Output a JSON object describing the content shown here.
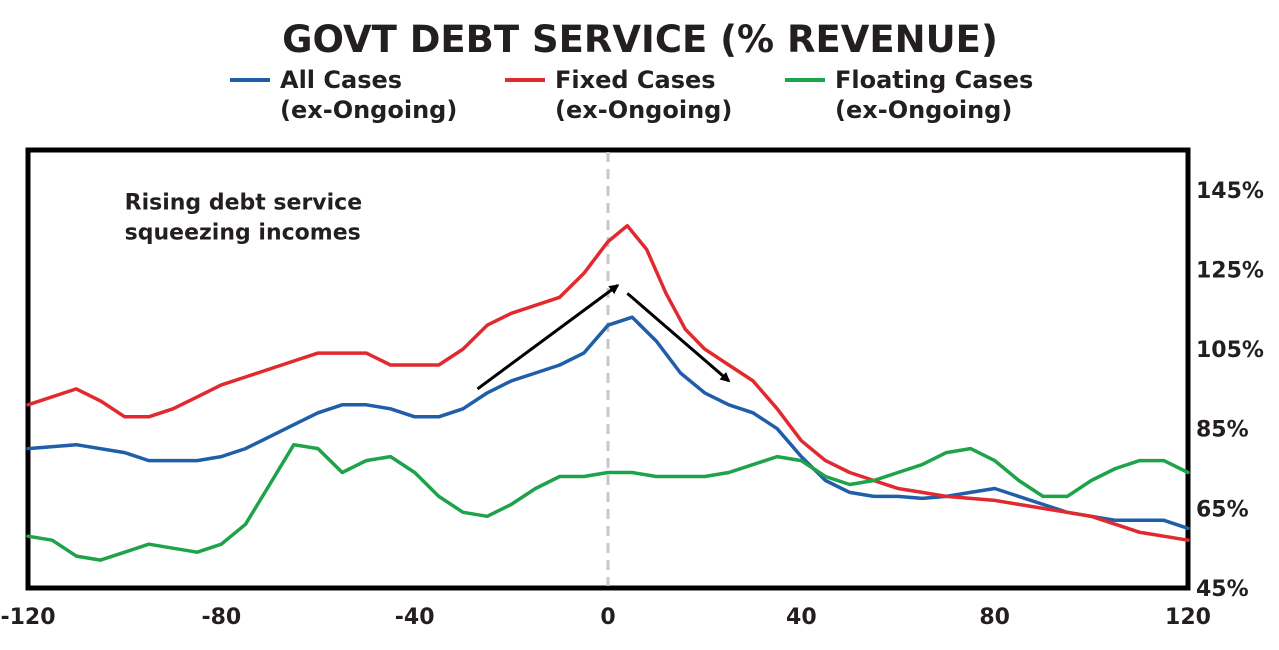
{
  "chart_data": {
    "type": "line",
    "title": "GOVT DEBT SERVICE (% REVENUE)",
    "xlabel": "",
    "ylabel": "",
    "xlim": [
      -120,
      120
    ],
    "ylim": [
      45,
      155
    ],
    "x_ticks": [
      -120,
      -80,
      -40,
      0,
      40,
      80,
      120
    ],
    "x_tick_labels": [
      "-120",
      "-80",
      "-40",
      "0",
      "40",
      "80",
      "120"
    ],
    "y_ticks": [
      45,
      65,
      85,
      105,
      125,
      145
    ],
    "y_tick_labels": [
      "45%",
      "65%",
      "85%",
      "105%",
      "125%",
      "145%"
    ],
    "y_axis_side": "right",
    "grid": false,
    "legend_position": "top",
    "vertical_reference_line_x": 0,
    "annotation": {
      "lines": [
        "Rising debt service",
        "squeezing incomes"
      ],
      "x": -100,
      "y": 140
    },
    "arrows": [
      {
        "from": [
          -27,
          95
        ],
        "to": [
          2,
          121
        ]
      },
      {
        "from": [
          4,
          119
        ],
        "to": [
          25,
          97
        ]
      }
    ],
    "series": [
      {
        "name": [
          "All Cases",
          "(ex-Ongoing)"
        ],
        "color": "#1f5ea8",
        "x": [
          -120,
          -110,
          -100,
          -95,
          -90,
          -85,
          -80,
          -75,
          -70,
          -65,
          -60,
          -55,
          -50,
          -45,
          -40,
          -35,
          -30,
          -25,
          -20,
          -15,
          -10,
          -5,
          0,
          5,
          10,
          15,
          20,
          25,
          30,
          35,
          40,
          45,
          50,
          55,
          60,
          65,
          70,
          75,
          80,
          85,
          90,
          95,
          100,
          105,
          110,
          115,
          120
        ],
        "y": [
          80,
          81,
          79,
          77,
          77,
          77,
          78,
          80,
          83,
          86,
          89,
          91,
          91,
          90,
          88,
          88,
          90,
          94,
          97,
          99,
          101,
          104,
          111,
          113,
          107,
          99,
          94,
          91,
          89,
          85,
          78,
          72,
          69,
          68,
          68,
          67.5,
          68,
          69,
          70,
          68,
          66,
          64,
          63,
          62,
          62,
          62,
          60
        ]
      },
      {
        "name": [
          "Fixed Cases",
          "(ex-Ongoing)"
        ],
        "color": "#e02a2f",
        "x": [
          -120,
          -110,
          -105,
          -100,
          -95,
          -90,
          -85,
          -80,
          -75,
          -70,
          -65,
          -60,
          -55,
          -50,
          -45,
          -40,
          -35,
          -30,
          -25,
          -20,
          -15,
          -10,
          -5,
          0,
          4,
          8,
          12,
          16,
          20,
          25,
          30,
          35,
          40,
          45,
          50,
          55,
          60,
          65,
          70,
          75,
          80,
          85,
          90,
          95,
          100,
          105,
          110,
          115,
          120
        ],
        "y": [
          91,
          95,
          92,
          88,
          88,
          90,
          93,
          96,
          98,
          100,
          102,
          104,
          104,
          104,
          101,
          101,
          101,
          105,
          111,
          114,
          116,
          118,
          124,
          132,
          136,
          130,
          119,
          110,
          105,
          101,
          97,
          90,
          82,
          77,
          74,
          72,
          70,
          69,
          68,
          67.5,
          67,
          66,
          65,
          64,
          63,
          61,
          59,
          58,
          57
        ]
      },
      {
        "name": [
          "Floating Cases",
          "(ex-Ongoing)"
        ],
        "color": "#1ea34a",
        "x": [
          -120,
          -115,
          -110,
          -105,
          -100,
          -95,
          -90,
          -85,
          -80,
          -75,
          -70,
          -65,
          -60,
          -55,
          -50,
          -45,
          -40,
          -35,
          -30,
          -25,
          -20,
          -15,
          -10,
          -5,
          0,
          5,
          10,
          15,
          20,
          25,
          30,
          35,
          40,
          45,
          50,
          55,
          60,
          65,
          70,
          75,
          80,
          85,
          90,
          95,
          100,
          105,
          110,
          115,
          120
        ],
        "y": [
          58,
          57,
          53,
          52,
          54,
          56,
          55,
          54,
          56,
          61,
          71,
          81,
          80,
          74,
          77,
          78,
          74,
          68,
          64,
          63,
          66,
          70,
          73,
          73,
          74,
          74,
          73,
          73,
          73,
          74,
          76,
          78,
          77,
          73,
          71,
          72,
          74,
          76,
          79,
          80,
          77,
          72,
          68,
          68,
          72,
          75,
          77,
          77,
          74
        ]
      }
    ]
  }
}
